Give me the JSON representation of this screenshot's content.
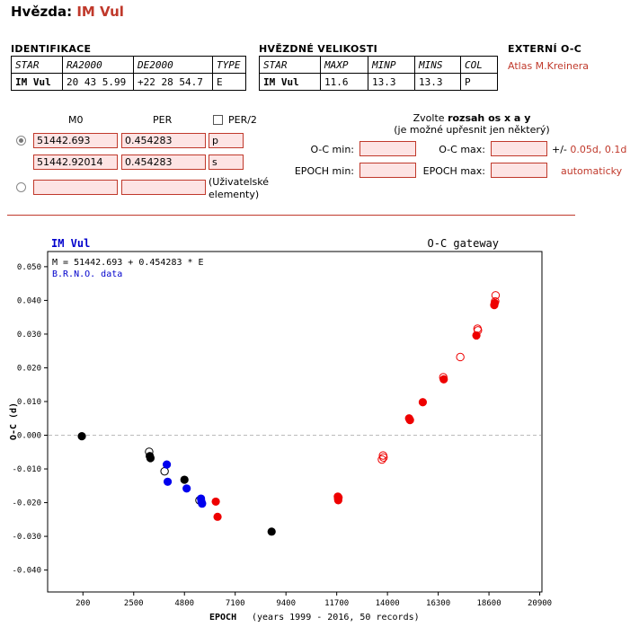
{
  "header": {
    "prefix": "Hvězda:",
    "star": "IM Vul"
  },
  "identifikace": {
    "title": "IDENTIFIKACE",
    "columns": [
      "STAR",
      "RA2000",
      "DE2000",
      "TYPE"
    ],
    "values": [
      "IM Vul",
      "20 43 5.99",
      "+22 28 54.7",
      "E"
    ]
  },
  "velikosti": {
    "title": "HVĚZDNÉ VELIKOSTI",
    "columns": [
      "STAR",
      "MAXP",
      "MINP",
      "MINS",
      "COL"
    ],
    "values": [
      "IM Vul",
      "11.6",
      "13.3",
      "13.3",
      "P"
    ]
  },
  "externi": {
    "title": "EXTERNÍ O-C",
    "link": "Atlas M.Kreinera"
  },
  "elements": {
    "m0_label": "M0",
    "per_label": "PER",
    "per2_label": "PER/2",
    "row1": {
      "m0": "51442.693",
      "per": "0.454283",
      "flag": "p"
    },
    "row2": {
      "m0": "51442.92014",
      "per": "0.454283",
      "flag": "s"
    },
    "row3": {
      "m0": "",
      "per": "",
      "note": "(Uživatelské elementy)"
    }
  },
  "range": {
    "title_pre": "Zvolte ",
    "title_bold": "rozsah os x a y",
    "subtitle": "(je možné upřesnit jen některý)",
    "oc_min_label": "O-C min:",
    "oc_max_label": "O-C max:",
    "epoch_min_label": "EPOCH min:",
    "epoch_max_label": "EPOCH max:",
    "pm_label": "+/-",
    "link_005": "0.05d",
    "sep": ",",
    "link_01": "0.1d",
    "auto": "automaticky",
    "oc_min": "",
    "oc_max": "",
    "epoch_min": "",
    "epoch_max": ""
  },
  "chart_data": {
    "type": "scatter",
    "title": "IM Vul",
    "subtitle": "O-C gateway",
    "formula": "M = 51442.693 + 0.454283 * E",
    "source": "B.R.N.O. data",
    "xlabel": "EPOCH",
    "xlabel_note": "(years 1999 - 2016, 50 records)",
    "ylabel": "O-C (d)",
    "xlim": [
      -1400,
      21000
    ],
    "ylim": [
      -0.0465,
      0.0545
    ],
    "xticks": [
      200,
      2500,
      4800,
      7100,
      9400,
      11700,
      14000,
      16300,
      18600,
      20900
    ],
    "yticks": [
      0.05,
      0.04,
      0.03,
      0.02,
      0.01,
      0.0,
      -0.01,
      -0.02,
      -0.03,
      -0.04
    ],
    "ytick_labels": [
      "0.050",
      "0.040",
      "0.030",
      "0.020",
      "0.010",
      "-0.000",
      "-0.010",
      "-0.020",
      "-0.030",
      "-0.040"
    ],
    "zero_line": true,
    "colors": {
      "black": "#000000",
      "blue": "#0000ee",
      "red": "#ee0000"
    },
    "points": [
      {
        "x": 150,
        "y": -0.0003,
        "color": "black",
        "filled": true
      },
      {
        "x": 3200,
        "y": -0.0049,
        "color": "black",
        "filled": false
      },
      {
        "x": 3230,
        "y": -0.0062,
        "color": "black",
        "filled": true
      },
      {
        "x": 3260,
        "y": -0.0068,
        "color": "black",
        "filled": true
      },
      {
        "x": 3900,
        "y": -0.0107,
        "color": "black",
        "filled": false
      },
      {
        "x": 4000,
        "y": -0.0087,
        "color": "blue",
        "filled": true
      },
      {
        "x": 4040,
        "y": -0.0138,
        "color": "blue",
        "filled": true
      },
      {
        "x": 4800,
        "y": -0.0132,
        "color": "black",
        "filled": true
      },
      {
        "x": 4900,
        "y": -0.0158,
        "color": "blue",
        "filled": true
      },
      {
        "x": 5480,
        "y": -0.0193,
        "color": "black",
        "filled": false
      },
      {
        "x": 5550,
        "y": -0.0188,
        "color": "blue",
        "filled": true
      },
      {
        "x": 5570,
        "y": -0.0197,
        "color": "blue",
        "filled": true
      },
      {
        "x": 5600,
        "y": -0.0203,
        "color": "blue",
        "filled": true
      },
      {
        "x": 6220,
        "y": -0.0197,
        "color": "red",
        "filled": true
      },
      {
        "x": 6300,
        "y": -0.0242,
        "color": "red",
        "filled": true
      },
      {
        "x": 8750,
        "y": -0.0286,
        "color": "black",
        "filled": true
      },
      {
        "x": 11750,
        "y": -0.0182,
        "color": "red",
        "filled": true
      },
      {
        "x": 11760,
        "y": -0.0188,
        "color": "red",
        "filled": true
      },
      {
        "x": 11770,
        "y": -0.0193,
        "color": "red",
        "filled": true
      },
      {
        "x": 11780,
        "y": -0.0185,
        "color": "red",
        "filled": false
      },
      {
        "x": 13750,
        "y": -0.0072,
        "color": "red",
        "filled": false
      },
      {
        "x": 13800,
        "y": -0.006,
        "color": "red",
        "filled": false
      },
      {
        "x": 13820,
        "y": -0.0066,
        "color": "red",
        "filled": false
      },
      {
        "x": 14980,
        "y": 0.005,
        "color": "red",
        "filled": true
      },
      {
        "x": 15020,
        "y": 0.0045,
        "color": "red",
        "filled": true
      },
      {
        "x": 15600,
        "y": 0.0098,
        "color": "red",
        "filled": true
      },
      {
        "x": 16530,
        "y": 0.0172,
        "color": "red",
        "filled": false
      },
      {
        "x": 16550,
        "y": 0.0166,
        "color": "red",
        "filled": true
      },
      {
        "x": 17300,
        "y": 0.0232,
        "color": "red",
        "filled": false
      },
      {
        "x": 18030,
        "y": 0.0296,
        "color": "red",
        "filled": true
      },
      {
        "x": 18080,
        "y": 0.0316,
        "color": "red",
        "filled": false
      },
      {
        "x": 18100,
        "y": 0.0311,
        "color": "red",
        "filled": false
      },
      {
        "x": 18840,
        "y": 0.0386,
        "color": "red",
        "filled": true
      },
      {
        "x": 18860,
        "y": 0.0392,
        "color": "red",
        "filled": true
      },
      {
        "x": 18880,
        "y": 0.0397,
        "color": "red",
        "filled": false
      },
      {
        "x": 18900,
        "y": 0.0415,
        "color": "red",
        "filled": false
      }
    ]
  }
}
